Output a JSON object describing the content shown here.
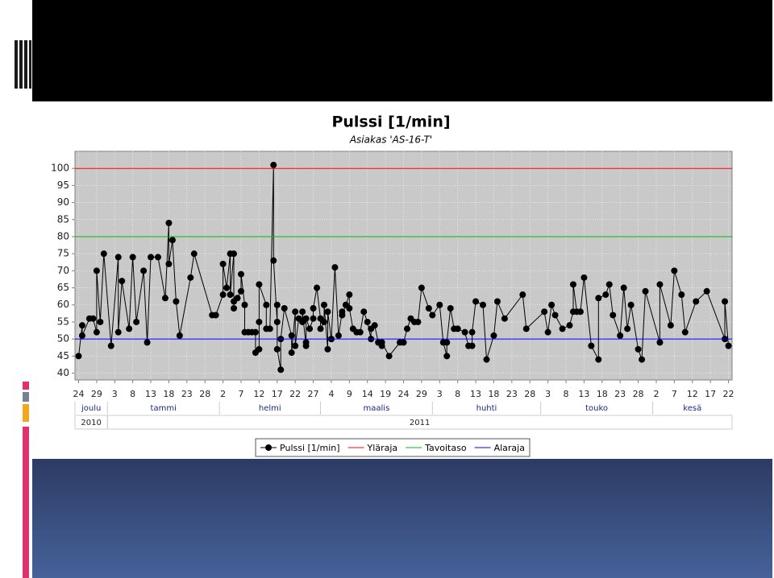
{
  "chart_data": {
    "type": "line",
    "title": "Pulssi [1/min]",
    "subtitle": "Asiakas 'AS-16-T'",
    "x": [
      "2010-12-24",
      "2010-12-25",
      "2010-12-25",
      "2010-12-27",
      "2010-12-28",
      "2010-12-29",
      "2010-12-29",
      "2010-12-30",
      "2010-12-31",
      "2011-01-02",
      "2011-01-04",
      "2011-01-04",
      "2011-01-05",
      "2011-01-07",
      "2011-01-08",
      "2011-01-09",
      "2011-01-11",
      "2011-01-12",
      "2011-01-13",
      "2011-01-15",
      "2011-01-17",
      "2011-01-18",
      "2011-01-18",
      "2011-01-19",
      "2011-01-20",
      "2011-01-21",
      "2011-01-24",
      "2011-01-25",
      "2011-01-30",
      "2011-01-31",
      "2011-02-02",
      "2011-02-02",
      "2011-02-03",
      "2011-02-04",
      "2011-02-04",
      "2011-02-05",
      "2011-02-05",
      "2011-02-05",
      "2011-02-06",
      "2011-02-07",
      "2011-02-07",
      "2011-02-08",
      "2011-02-08",
      "2011-02-09",
      "2011-02-10",
      "2011-02-11",
      "2011-02-11",
      "2011-02-12",
      "2011-02-12",
      "2011-02-12",
      "2011-02-14",
      "2011-02-14",
      "2011-02-15",
      "2011-02-16",
      "2011-02-16",
      "2011-02-17",
      "2011-02-17",
      "2011-02-17",
      "2011-02-18",
      "2011-02-18",
      "2011-02-19",
      "2011-02-21",
      "2011-02-21",
      "2011-02-22",
      "2011-02-22",
      "2011-02-23",
      "2011-02-24",
      "2011-02-24",
      "2011-02-25",
      "2011-02-25",
      "2011-02-25",
      "2011-02-26",
      "2011-02-27",
      "2011-02-27",
      "2011-02-28",
      "2011-03-01",
      "2011-03-01",
      "2011-03-02",
      "2011-03-02",
      "2011-03-03",
      "2011-03-03",
      "2011-03-04",
      "2011-03-04",
      "2011-03-05",
      "2011-03-06",
      "2011-03-07",
      "2011-03-07",
      "2011-03-08",
      "2011-03-09",
      "2011-03-09",
      "2011-03-10",
      "2011-03-11",
      "2011-03-12",
      "2011-03-13",
      "2011-03-14",
      "2011-03-15",
      "2011-03-15",
      "2011-03-16",
      "2011-03-17",
      "2011-03-18",
      "2011-03-18",
      "2011-03-20",
      "2011-03-23",
      "2011-03-24",
      "2011-03-25",
      "2011-03-26",
      "2011-03-27",
      "2011-03-28",
      "2011-03-29",
      "2011-03-31",
      "2011-04-01",
      "2011-04-03",
      "2011-04-04",
      "2011-04-05",
      "2011-04-05",
      "2011-04-06",
      "2011-04-07",
      "2011-04-08",
      "2011-04-10",
      "2011-04-11",
      "2011-04-12",
      "2011-04-12",
      "2011-04-13",
      "2011-04-15",
      "2011-04-16",
      "2011-04-18",
      "2011-04-19",
      "2011-04-21",
      "2011-04-26",
      "2011-04-27",
      "2011-05-02",
      "2011-05-03",
      "2011-05-04",
      "2011-05-05",
      "2011-05-07",
      "2011-05-09",
      "2011-05-10",
      "2011-05-10",
      "2011-05-11",
      "2011-05-12",
      "2011-05-13",
      "2011-05-15",
      "2011-05-17",
      "2011-05-17",
      "2011-05-19",
      "2011-05-20",
      "2011-05-21",
      "2011-05-23",
      "2011-05-24",
      "2011-05-25",
      "2011-05-26",
      "2011-05-28",
      "2011-05-29",
      "2011-05-30",
      "2011-06-03",
      "2011-06-03",
      "2011-06-06",
      "2011-06-07",
      "2011-06-09",
      "2011-06-10",
      "2011-06-13",
      "2011-06-16",
      "2011-06-21",
      "2011-06-21",
      "2011-06-22"
    ],
    "series": [
      {
        "name": "Pulssi [1/min]",
        "color": "#000000",
        "marker": "circle",
        "values": [
          45,
          54,
          51,
          56,
          56,
          52,
          70,
          55,
          75,
          48,
          74,
          52,
          67,
          53,
          74,
          55,
          70,
          49,
          74,
          74,
          62,
          84,
          72,
          79,
          61,
          51,
          68,
          75,
          57,
          57,
          63,
          72,
          65,
          75,
          63,
          75,
          59,
          61,
          62,
          64,
          69,
          60,
          52,
          52,
          52,
          52,
          46,
          47,
          55,
          66,
          60,
          53,
          53,
          101,
          73,
          55,
          60,
          47,
          41,
          50,
          59,
          51,
          46,
          58,
          48,
          56,
          55,
          58,
          48,
          49,
          56,
          53,
          56,
          59,
          65,
          56,
          53,
          55,
          60,
          47,
          58,
          50,
          50,
          71,
          51,
          58,
          57,
          60,
          63,
          59,
          53,
          52,
          52,
          58,
          55,
          50,
          53,
          54,
          49,
          48,
          49,
          45,
          49,
          49,
          53,
          56,
          55,
          55,
          65,
          59,
          57,
          60,
          49,
          45,
          49,
          59,
          53,
          53,
          52,
          48,
          48,
          52,
          61,
          60,
          44,
          51,
          61,
          56,
          63,
          53,
          58,
          52,
          60,
          57,
          53,
          54,
          58,
          66,
          58,
          58,
          68,
          48,
          44,
          62,
          63,
          66,
          57,
          51,
          65,
          53,
          60,
          47,
          44,
          64,
          49,
          66,
          54,
          70,
          63,
          52,
          61,
          64,
          50,
          61,
          48
        ]
      },
      {
        "name": "Yläraja",
        "color": "#ff0000",
        "level": 100
      },
      {
        "name": "Tavoitaso",
        "color": "#00c000",
        "level": 80
      },
      {
        "name": "Alaraja",
        "color": "#0000ff",
        "level": 50
      }
    ],
    "xlim": [
      "2010-12-23",
      "2011-06-23"
    ],
    "xticks": [
      {
        "value": "2010-12-24",
        "label": "24"
      },
      {
        "value": "2010-12-29",
        "label": "29"
      },
      {
        "value": "2011-01-03",
        "label": "3"
      },
      {
        "value": "2011-01-08",
        "label": "8"
      },
      {
        "value": "2011-01-13",
        "label": "13"
      },
      {
        "value": "2011-01-18",
        "label": "18"
      },
      {
        "value": "2011-01-23",
        "label": "23"
      },
      {
        "value": "2011-01-28",
        "label": "28"
      },
      {
        "value": "2011-02-02",
        "label": "2"
      },
      {
        "value": "2011-02-07",
        "label": "7"
      },
      {
        "value": "2011-02-12",
        "label": "12"
      },
      {
        "value": "2011-02-17",
        "label": "17"
      },
      {
        "value": "2011-02-22",
        "label": "22"
      },
      {
        "value": "2011-02-27",
        "label": "27"
      },
      {
        "value": "2011-03-04",
        "label": "4"
      },
      {
        "value": "2011-03-09",
        "label": "9"
      },
      {
        "value": "2011-03-14",
        "label": "14"
      },
      {
        "value": "2011-03-19",
        "label": "19"
      },
      {
        "value": "2011-03-24",
        "label": "24"
      },
      {
        "value": "2011-03-29",
        "label": "29"
      },
      {
        "value": "2011-04-03",
        "label": "3"
      },
      {
        "value": "2011-04-08",
        "label": "8"
      },
      {
        "value": "2011-04-13",
        "label": "13"
      },
      {
        "value": "2011-04-18",
        "label": "18"
      },
      {
        "value": "2011-04-23",
        "label": "23"
      },
      {
        "value": "2011-04-28",
        "label": "28"
      },
      {
        "value": "2011-05-03",
        "label": "3"
      },
      {
        "value": "2011-05-08",
        "label": "8"
      },
      {
        "value": "2011-05-13",
        "label": "13"
      },
      {
        "value": "2011-05-18",
        "label": "18"
      },
      {
        "value": "2011-05-23",
        "label": "23"
      },
      {
        "value": "2011-05-28",
        "label": "28"
      },
      {
        "value": "2011-06-02",
        "label": "2"
      },
      {
        "value": "2011-06-07",
        "label": "7"
      },
      {
        "value": "2011-06-12",
        "label": "12"
      },
      {
        "value": "2011-06-17",
        "label": "17"
      },
      {
        "value": "2011-06-22",
        "label": "22"
      }
    ],
    "months": [
      {
        "value": "2010-12",
        "label": "joulu"
      },
      {
        "value": "2011-01",
        "label": "tammi"
      },
      {
        "value": "2011-02",
        "label": "helmi"
      },
      {
        "value": "2011-03",
        "label": "maalis"
      },
      {
        "value": "2011-04",
        "label": "huhti"
      },
      {
        "value": "2011-05",
        "label": "touko"
      },
      {
        "value": "2011-06",
        "label": "kesä"
      }
    ],
    "years": [
      2010,
      2011
    ],
    "ylim": [
      38,
      105
    ],
    "yticks": [
      40,
      45,
      50,
      55,
      60,
      65,
      70,
      75,
      80,
      85,
      90,
      95,
      100
    ],
    "grid": true
  }
}
